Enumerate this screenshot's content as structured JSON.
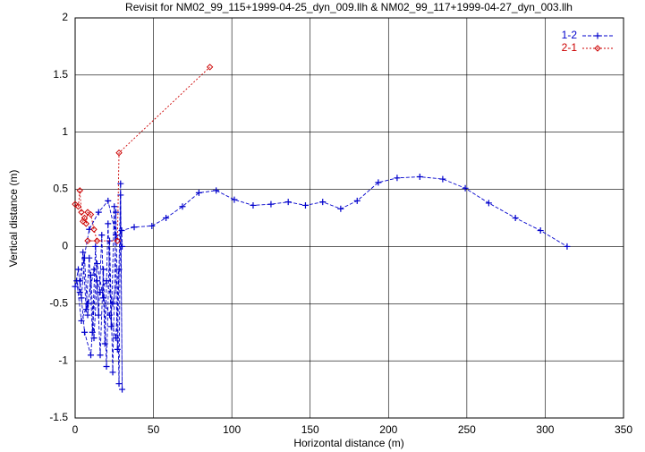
{
  "chart_data": {
    "type": "line",
    "title": "Revisit for NM02_99_115+1999-04-25_dyn_009.llh & NM02_99_117+1999-04-27_dyn_003.llh",
    "x_label": "Horizontal distance (m)",
    "y_label": "Vertical distance (m)",
    "xlim": [
      0,
      350
    ],
    "xticks": [
      0,
      50,
      100,
      150,
      200,
      250,
      300,
      350
    ],
    "ylim": [
      -1.5,
      2
    ],
    "yticks": [
      -1.5,
      -1,
      -0.5,
      0,
      0.5,
      1,
      1.5,
      2
    ],
    "grid": true,
    "legend": "top-right",
    "series": [
      {
        "name": "1-2",
        "color": "#0000cc",
        "marker": "plus",
        "x": [
          0,
          2,
          4,
          6,
          8,
          10,
          12,
          14,
          16,
          18,
          20,
          22,
          24,
          26,
          28,
          29,
          30,
          29,
          27,
          25,
          23,
          21,
          19,
          17,
          15,
          13,
          11,
          9,
          7,
          5,
          3,
          1,
          4,
          8,
          12,
          16,
          20,
          24,
          28,
          26,
          22,
          18,
          14,
          10,
          6,
          3,
          9,
          15,
          21,
          26,
          30,
          29.7,
          37.7,
          49,
          58,
          68.5,
          79,
          90,
          101.6,
          113.6,
          125,
          136,
          147,
          158,
          169.5,
          180,
          193.5,
          205.5,
          220,
          234.6,
          249,
          264,
          281,
          297,
          314
        ],
        "values": [
          -0.35,
          -0.2,
          -0.45,
          -0.1,
          -0.6,
          -0.25,
          -0.8,
          -0.3,
          -0.95,
          -0.2,
          -1.05,
          0.05,
          -1.1,
          0.3,
          -1.2,
          0.45,
          -1.25,
          0.55,
          -0.9,
          0.35,
          -0.7,
          0.2,
          -0.85,
          0.1,
          -0.6,
          0,
          -0.75,
          -0.1,
          -0.55,
          -0.05,
          -0.4,
          -0.3,
          -0.65,
          -0.5,
          -0.2,
          -0.4,
          -0.3,
          -0.5,
          -0.2,
          -0.8,
          -0.6,
          -0.45,
          -0.15,
          -0.95,
          -0.75,
          -0.3,
          0.15,
          0.3,
          0.4,
          0.1,
          0,
          0.14,
          0.17,
          0.18,
          0.25,
          0.35,
          0.47,
          0.49,
          0.41,
          0.36,
          0.37,
          0.39,
          0.36,
          0.39,
          0.33,
          0.4,
          0.56,
          0.6,
          0.61,
          0.59,
          0.51,
          0.38,
          0.25,
          0.14,
          0
        ]
      },
      {
        "name": "2-1",
        "color": "#cc0000",
        "marker": "diamond",
        "x": [
          0,
          2,
          3,
          4,
          5,
          6,
          7,
          8,
          10,
          12,
          14,
          8,
          27,
          28,
          86
        ],
        "values": [
          0.37,
          0.35,
          0.49,
          0.3,
          0.22,
          0.25,
          0.2,
          0.3,
          0.28,
          0.15,
          0.05,
          0.05,
          0.05,
          0.82,
          1.57
        ]
      }
    ]
  }
}
